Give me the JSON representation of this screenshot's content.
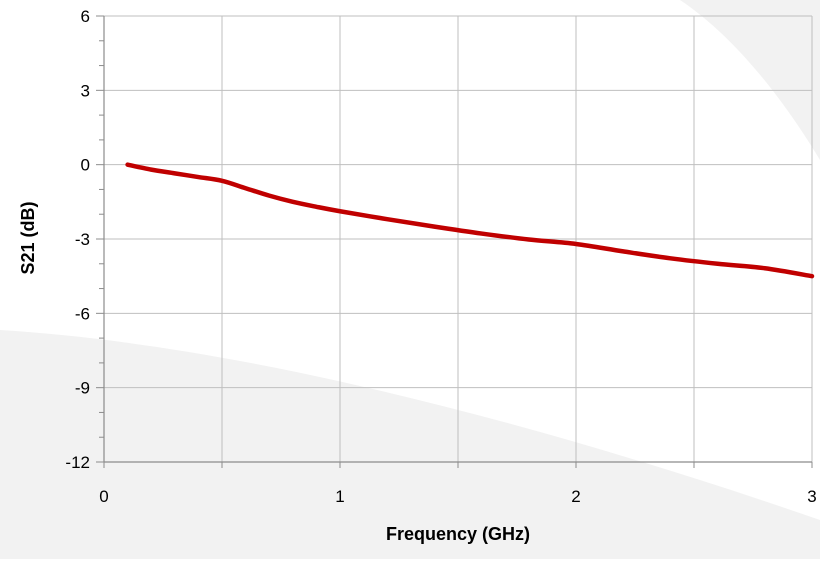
{
  "chart_data": {
    "type": "line",
    "title": "",
    "xlabel": "Frequency (GHz)",
    "ylabel": "S21 (dB)",
    "xlim": [
      0,
      3
    ],
    "ylim": [
      -12,
      6
    ],
    "x_ticks": [
      "0",
      "1",
      "2",
      "3"
    ],
    "x_tick_values": [
      0,
      1,
      2,
      3
    ],
    "y_ticks": [
      "6",
      "3",
      "0",
      "-3",
      "-6",
      "-9",
      "-12"
    ],
    "y_tick_values": [
      6,
      3,
      0,
      -3,
      -6,
      -9,
      -12
    ],
    "grid": true,
    "legend": "none",
    "series": [
      {
        "color": "#C00000",
        "x": [
          0.1,
          0.2,
          0.3,
          0.4,
          0.5,
          0.6,
          0.7,
          0.8,
          0.9,
          1.0,
          1.2,
          1.4,
          1.6,
          1.8,
          2.0,
          2.2,
          2.4,
          2.6,
          2.8,
          3.0
        ],
        "y": [
          0.0,
          -0.2,
          -0.35,
          -0.5,
          -0.65,
          -0.95,
          -1.25,
          -1.5,
          -1.7,
          -1.88,
          -2.2,
          -2.5,
          -2.78,
          -3.02,
          -3.2,
          -3.5,
          -3.78,
          -4.0,
          -4.18,
          -4.5
        ]
      }
    ]
  },
  "colors": {
    "background_shape": "#F2F2F2",
    "grid": "#BFBFBF",
    "axis": "#8C8C8C",
    "series": "#C00000"
  }
}
